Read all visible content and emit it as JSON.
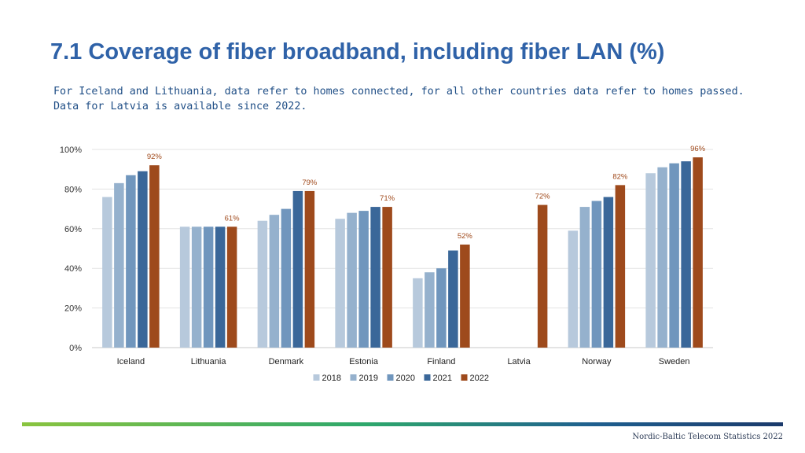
{
  "title": "7.1 Coverage of fiber broadband, including fiber LAN (%)",
  "subtitle_lines": [
    "For Iceland and Lithuania, data refer to homes connected, for all other countries data refer to homes passed.",
    "Data for Latvia is available since 2022."
  ],
  "footer": "Nordic-Baltic Telecom Statistics 2022",
  "chart_data": {
    "type": "bar",
    "categories": [
      "Iceland",
      "Lithuania",
      "Denmark",
      "Estonia",
      "Finland",
      "Latvia",
      "Norway",
      "Sweden"
    ],
    "series": [
      {
        "name": "2018",
        "color": "#b7c9dc",
        "values": [
          76,
          61,
          64,
          65,
          35,
          null,
          59,
          88
        ]
      },
      {
        "name": "2019",
        "color": "#95b1cd",
        "values": [
          83,
          61,
          67,
          68,
          38,
          null,
          71,
          91
        ]
      },
      {
        "name": "2020",
        "color": "#7096bd",
        "values": [
          87,
          61,
          70,
          69,
          40,
          null,
          74,
          93
        ]
      },
      {
        "name": "2021",
        "color": "#3a6799",
        "values": [
          89,
          61,
          79,
          71,
          49,
          null,
          76,
          94
        ]
      },
      {
        "name": "2022",
        "color": "#9e4a1c",
        "values": [
          92,
          61,
          79,
          71,
          52,
          72,
          82,
          96
        ]
      }
    ],
    "data_labels": [
      "92%",
      "61%",
      "79%",
      "71%",
      "52%",
      "72%",
      "82%",
      "96%"
    ],
    "y_ticks": [
      0,
      20,
      40,
      60,
      80,
      100
    ],
    "y_tick_labels": [
      "0%",
      "20%",
      "40%",
      "60%",
      "80%",
      "100%"
    ],
    "ylim": [
      0,
      100
    ],
    "grid": true,
    "legend_position": "bottom",
    "xlabel": "",
    "ylabel": ""
  }
}
